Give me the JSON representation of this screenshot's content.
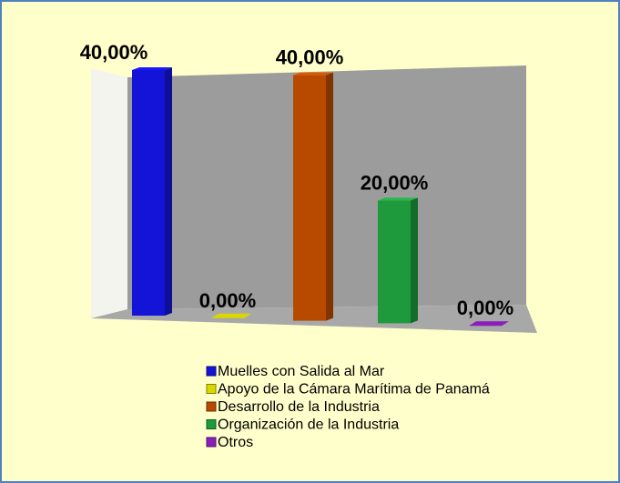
{
  "chart_data": {
    "type": "bar",
    "categories": [
      "Muelles con Salida al Mar",
      "Apoyo de la Cámara Marítima de Panamá",
      "Desarrollo de la Industria",
      "Organización de la Industria",
      "Otros"
    ],
    "values": [
      40,
      0,
      40,
      20,
      0
    ],
    "value_labels": [
      "40,00%",
      "0,00%",
      "40,00%",
      "20,00%",
      "0,00%"
    ],
    "colors": [
      "#1414d8",
      "#d8d800",
      "#b84a00",
      "#1e9a3c",
      "#8a1eb8"
    ]
  }
}
